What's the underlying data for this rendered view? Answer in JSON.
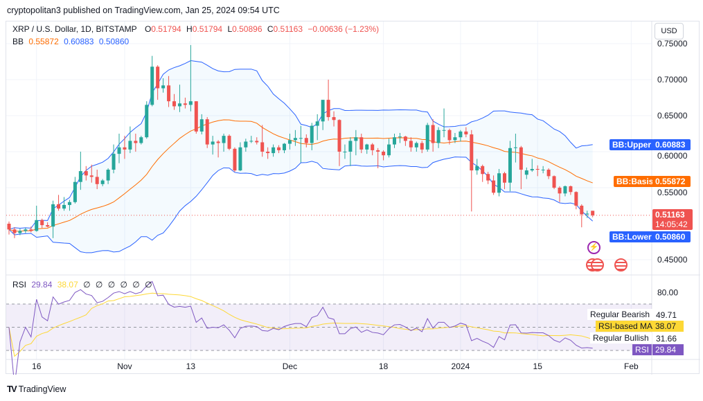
{
  "header": {
    "published": "cryptopolitan3 published on TradingView.com, Jan 25, 2024 09:54 UTC"
  },
  "legend": {
    "symbol": "XRP / U.S. Dollar, 1D, BITSTAMP",
    "o_label": "O",
    "o": "0.51794",
    "h_label": "H",
    "h": "0.51794",
    "l_label": "L",
    "l": "0.50896",
    "c_label": "C",
    "c": "0.51163",
    "change": "−0.00636 (−1.23%)",
    "bb_label": "BB",
    "bb_basis": "0.55872",
    "bb_upper": "0.60883",
    "bb_lower": "0.50860"
  },
  "rsi_legend": {
    "label": "RSI",
    "rsi": "29.84",
    "ma": "38.07",
    "nulls": [
      "∅",
      "∅",
      "∅",
      "∅",
      "∅",
      "∅"
    ]
  },
  "currency_button": "USD",
  "price_tags": {
    "upper_name": "BB:Upper",
    "upper": "0.60883",
    "basis_name": "BB:Basis",
    "basis": "0.55872",
    "last": "0.51163",
    "countdown": "14:05:42",
    "lower_name": "BB:Lower",
    "lower": "0.50860"
  },
  "rsi_tags": {
    "bearish_name": "Regular Bearish",
    "bearish": "49.71",
    "ma_name": "RSI-based MA",
    "ma": "38.07",
    "bullish_name": "Regular Bullish",
    "bullish": "31.66",
    "rsi_name": "RSI",
    "rsi": "29.84"
  },
  "footer": {
    "brand": "TradingView"
  },
  "colors": {
    "up": "#26a69a",
    "down": "#ef5350",
    "bb_band": "#2962ff",
    "bb_basis": "#ff6d00",
    "rsi": "#7e57c2",
    "rsi_ma": "#fdd835"
  },
  "chart_data": {
    "type": "candlestick",
    "title": "XRP / U.S. Dollar, 1D, BITSTAMP",
    "start_date": "2023-10-11",
    "ylim": [
      0.42,
      0.76
    ],
    "price_ticks": [
      "0.75000",
      "0.70000",
      "0.65000",
      "0.60000",
      "0.55000",
      "0.45000"
    ],
    "price_tick_values": [
      0.75,
      0.7,
      0.65,
      0.6,
      0.55,
      0.45
    ],
    "rsi_ticks": [
      "80.00"
    ],
    "rsi_bands": [
      70,
      30
    ],
    "time_ticks": [
      {
        "label": "16",
        "day": 5
      },
      {
        "label": "Nov",
        "day": 21
      },
      {
        "label": "13",
        "day": 33
      },
      {
        "label": "Dec",
        "day": 51
      },
      {
        "label": "18",
        "day": 68
      },
      {
        "label": "2024",
        "day": 82
      },
      {
        "label": "15",
        "day": 96
      },
      {
        "label": "Feb",
        "day": 113
      }
    ],
    "ohlc": [
      [
        0.5,
        0.503,
        0.485,
        0.492
      ],
      [
        0.492,
        0.495,
        0.48,
        0.487
      ],
      [
        0.487,
        0.493,
        0.484,
        0.49
      ],
      [
        0.49,
        0.494,
        0.487,
        0.492
      ],
      [
        0.492,
        0.496,
        0.488,
        0.49
      ],
      [
        0.49,
        0.525,
        0.489,
        0.505
      ],
      [
        0.505,
        0.507,
        0.494,
        0.498
      ],
      [
        0.498,
        0.502,
        0.495,
        0.496
      ],
      [
        0.496,
        0.532,
        0.48,
        0.527
      ],
      [
        0.527,
        0.54,
        0.518,
        0.521
      ],
      [
        0.521,
        0.537,
        0.518,
        0.526
      ],
      [
        0.526,
        0.533,
        0.518,
        0.53
      ],
      [
        0.53,
        0.565,
        0.528,
        0.558
      ],
      [
        0.558,
        0.6,
        0.547,
        0.573
      ],
      [
        0.573,
        0.58,
        0.56,
        0.567
      ],
      [
        0.567,
        0.582,
        0.557,
        0.565
      ],
      [
        0.565,
        0.575,
        0.548,
        0.555
      ],
      [
        0.555,
        0.562,
        0.552,
        0.56
      ],
      [
        0.56,
        0.577,
        0.555,
        0.575
      ],
      [
        0.575,
        0.61,
        0.57,
        0.597
      ],
      [
        0.597,
        0.625,
        0.584,
        0.606
      ],
      [
        0.606,
        0.622,
        0.59,
        0.603
      ],
      [
        0.603,
        0.635,
        0.598,
        0.615
      ],
      [
        0.615,
        0.625,
        0.6,
        0.612
      ],
      [
        0.612,
        0.622,
        0.61,
        0.62
      ],
      [
        0.62,
        0.67,
        0.618,
        0.665
      ],
      [
        0.665,
        0.733,
        0.663,
        0.718
      ],
      [
        0.718,
        0.72,
        0.672,
        0.688
      ],
      [
        0.688,
        0.702,
        0.682,
        0.692
      ],
      [
        0.692,
        0.705,
        0.662,
        0.67
      ],
      [
        0.67,
        0.68,
        0.658,
        0.663
      ],
      [
        0.663,
        0.693,
        0.655,
        0.667
      ],
      [
        0.667,
        0.675,
        0.66,
        0.665
      ],
      [
        0.665,
        0.748,
        0.656,
        0.67
      ],
      [
        0.67,
        0.67,
        0.625,
        0.628
      ],
      [
        0.628,
        0.652,
        0.624,
        0.645
      ],
      [
        0.645,
        0.648,
        0.605,
        0.61
      ],
      [
        0.61,
        0.622,
        0.596,
        0.614
      ],
      [
        0.614,
        0.616,
        0.592,
        0.612
      ],
      [
        0.612,
        0.625,
        0.6,
        0.622
      ],
      [
        0.622,
        0.624,
        0.602,
        0.604
      ],
      [
        0.604,
        0.606,
        0.572,
        0.574
      ],
      [
        0.574,
        0.613,
        0.573,
        0.606
      ],
      [
        0.606,
        0.618,
        0.6,
        0.614
      ],
      [
        0.614,
        0.622,
        0.612,
        0.615
      ],
      [
        0.615,
        0.62,
        0.61,
        0.613
      ],
      [
        0.613,
        0.637,
        0.593,
        0.6
      ],
      [
        0.6,
        0.606,
        0.59,
        0.598
      ],
      [
        0.598,
        0.61,
        0.593,
        0.606
      ],
      [
        0.606,
        0.609,
        0.598,
        0.602
      ],
      [
        0.602,
        0.612,
        0.598,
        0.611
      ],
      [
        0.611,
        0.625,
        0.603,
        0.616
      ],
      [
        0.616,
        0.63,
        0.608,
        0.619
      ],
      [
        0.618,
        0.636,
        0.585,
        0.619
      ],
      [
        0.619,
        0.624,
        0.606,
        0.612
      ],
      [
        0.612,
        0.64,
        0.602,
        0.636
      ],
      [
        0.636,
        0.652,
        0.616,
        0.642
      ],
      [
        0.642,
        0.67,
        0.63,
        0.672
      ],
      [
        0.672,
        0.7,
        0.643,
        0.648
      ],
      [
        0.648,
        0.656,
        0.635,
        0.644
      ],
      [
        0.644,
        0.645,
        0.58,
        0.6
      ],
      [
        0.6,
        0.61,
        0.59,
        0.6
      ],
      [
        0.6,
        0.62,
        0.58,
        0.615
      ],
      [
        0.615,
        0.63,
        0.595,
        0.62
      ],
      [
        0.62,
        0.625,
        0.598,
        0.603
      ],
      [
        0.603,
        0.611,
        0.597,
        0.61
      ],
      [
        0.61,
        0.612,
        0.595,
        0.602
      ],
      [
        0.602,
        0.605,
        0.577,
        0.6
      ],
      [
        0.6,
        0.602,
        0.588,
        0.595
      ],
      [
        0.595,
        0.618,
        0.592,
        0.61
      ],
      [
        0.61,
        0.625,
        0.605,
        0.62
      ],
      [
        0.62,
        0.626,
        0.612,
        0.621
      ],
      [
        0.621,
        0.622,
        0.608,
        0.615
      ],
      [
        0.615,
        0.62,
        0.6,
        0.606
      ],
      [
        0.606,
        0.614,
        0.6,
        0.612
      ],
      [
        0.612,
        0.615,
        0.598,
        0.603
      ],
      [
        0.603,
        0.64,
        0.6,
        0.637
      ],
      [
        0.637,
        0.645,
        0.6,
        0.612
      ],
      [
        0.612,
        0.634,
        0.605,
        0.63
      ],
      [
        0.63,
        0.66,
        0.62,
        0.63
      ],
      [
        0.63,
        0.632,
        0.61,
        0.616
      ],
      [
        0.616,
        0.626,
        0.612,
        0.62
      ],
      [
        0.62,
        0.63,
        0.614,
        0.628
      ],
      [
        0.628,
        0.634,
        0.62,
        0.624
      ],
      [
        0.624,
        0.63,
        0.517,
        0.574
      ],
      [
        0.574,
        0.59,
        0.568,
        0.58
      ],
      [
        0.58,
        0.582,
        0.558,
        0.569
      ],
      [
        0.569,
        0.572,
        0.555,
        0.56
      ],
      [
        0.56,
        0.567,
        0.54,
        0.543
      ],
      [
        0.543,
        0.576,
        0.538,
        0.57
      ],
      [
        0.57,
        0.572,
        0.548,
        0.557
      ],
      [
        0.557,
        0.615,
        0.545,
        0.605
      ],
      [
        0.605,
        0.625,
        0.585,
        0.606
      ],
      [
        0.606,
        0.608,
        0.548,
        0.575
      ],
      [
        0.568,
        0.578,
        0.562,
        0.574
      ],
      [
        0.574,
        0.59,
        0.572,
        0.576
      ],
      [
        0.576,
        0.581,
        0.566,
        0.575
      ],
      [
        0.575,
        0.58,
        0.57,
        0.575
      ],
      [
        0.575,
        0.577,
        0.562,
        0.566
      ],
      [
        0.566,
        0.567,
        0.548,
        0.55
      ],
      [
        0.55,
        0.552,
        0.53,
        0.542
      ],
      [
        0.542,
        0.553,
        0.538,
        0.552
      ],
      [
        0.552,
        0.553,
        0.54,
        0.544
      ],
      [
        0.544,
        0.545,
        0.52,
        0.525
      ],
      [
        0.525,
        0.527,
        0.495,
        0.513
      ],
      [
        0.513,
        0.518,
        0.508,
        0.514
      ],
      [
        0.51794,
        0.51794,
        0.50896,
        0.51163
      ]
    ]
  }
}
